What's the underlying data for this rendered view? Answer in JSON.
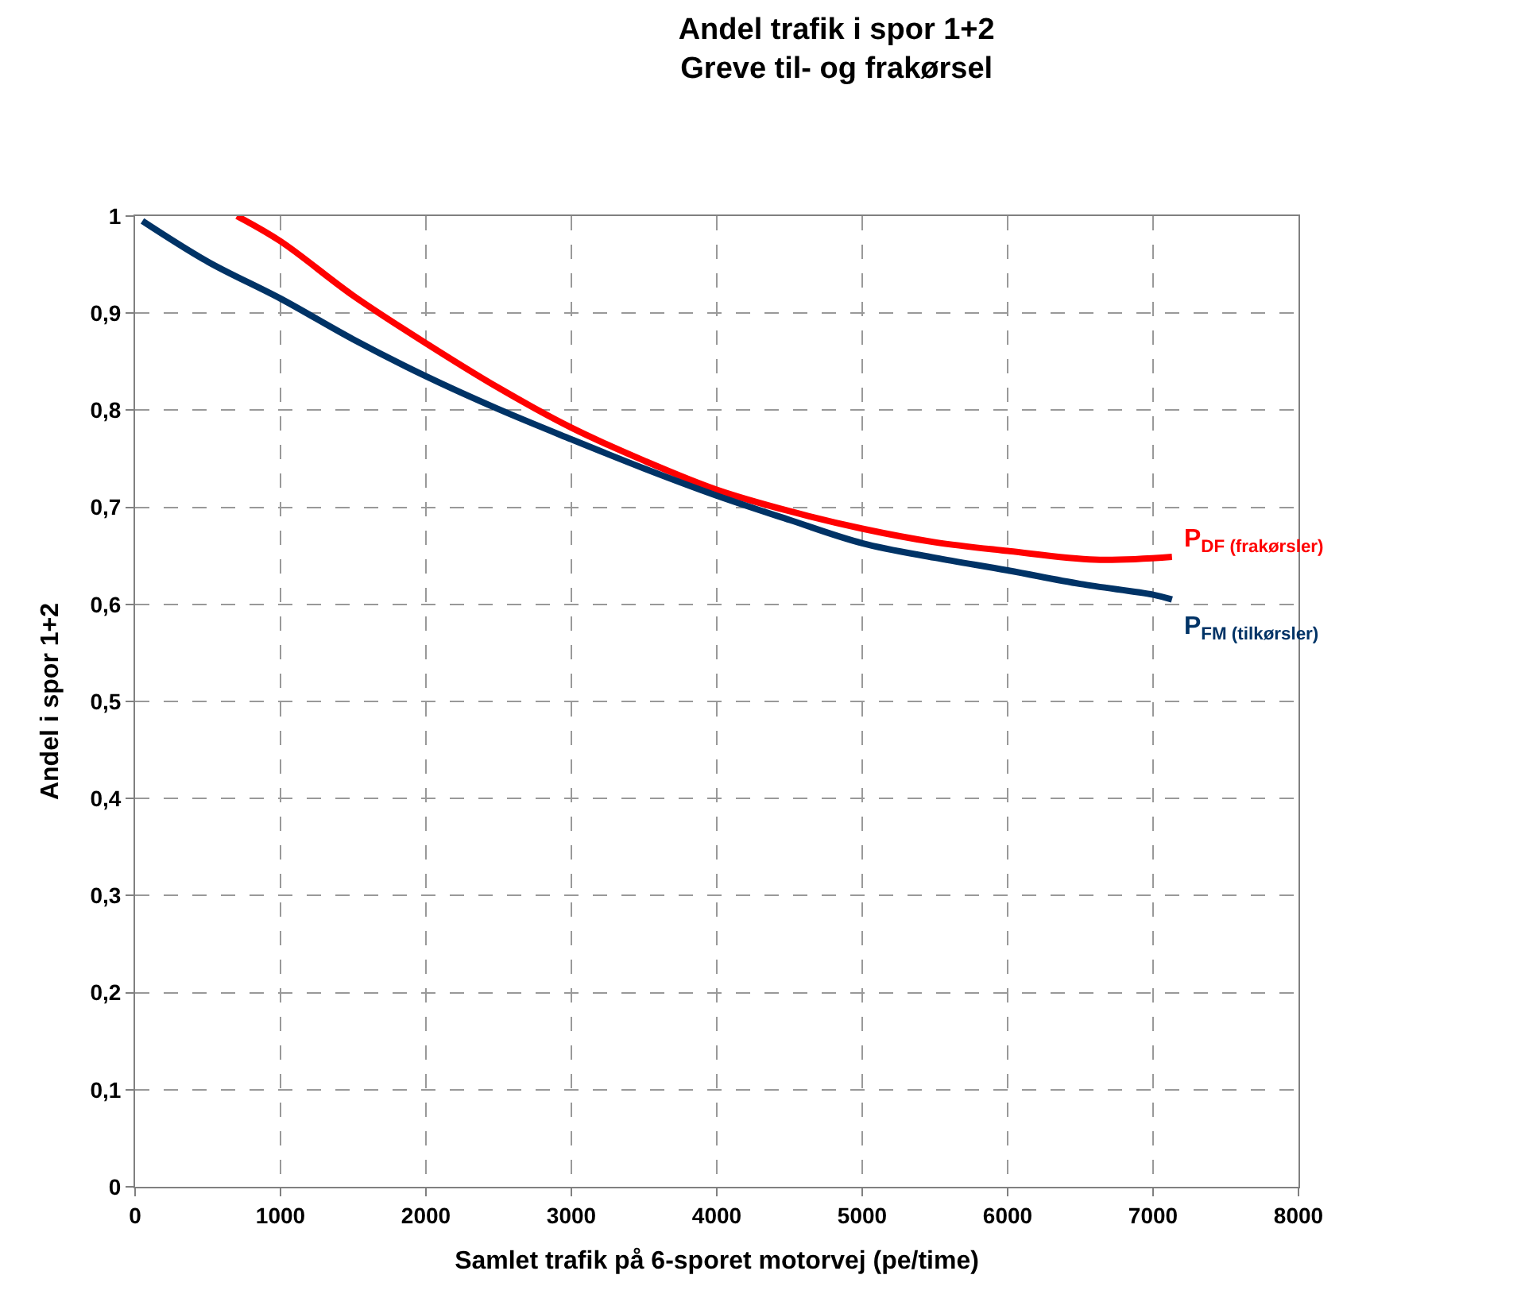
{
  "chart_data": {
    "type": "line",
    "title": "Andel trafik i spor 1+2\nGreve til- og frakørsel",
    "xlabel": "Samlet trafik på 6-sporet motorvej (pe/time)",
    "ylabel": "Andel i spor 1+2",
    "xlim": [
      0,
      8000
    ],
    "xticks": [
      0,
      1000,
      2000,
      3000,
      4000,
      5000,
      6000,
      7000,
      8000
    ],
    "ylim": [
      0,
      1
    ],
    "yticks": [
      {
        "value": 0,
        "label": "0"
      },
      {
        "value": 0.1,
        "label": "0,1"
      },
      {
        "value": 0.2,
        "label": "0,2"
      },
      {
        "value": 0.3,
        "label": "0,3"
      },
      {
        "value": 0.4,
        "label": "0,4"
      },
      {
        "value": 0.5,
        "label": "0,5"
      },
      {
        "value": 0.6,
        "label": "0,6"
      },
      {
        "value": 0.7,
        "label": "0,7"
      },
      {
        "value": 0.8,
        "label": "0,8"
      },
      {
        "value": 0.9,
        "label": "0,9"
      },
      {
        "value": 1,
        "label": "1"
      }
    ],
    "grid": true,
    "legend": false,
    "marker": "none",
    "line_style": "solid",
    "series": [
      {
        "name": "P$_{DF (frakørsler)}$",
        "color": "#ff0000",
        "x": [
          700,
          1000,
          1500,
          2000,
          2500,
          3000,
          3500,
          4000,
          4500,
          5000,
          5500,
          6000,
          6600,
          7130
        ],
        "values": [
          1.0,
          0.974,
          0.918,
          0.869,
          0.823,
          0.782,
          0.748,
          0.718,
          0.696,
          0.678,
          0.664,
          0.655,
          0.646,
          0.649
        ]
      },
      {
        "name": "P$_{FM (tilkørsler)}$",
        "color": "#003366",
        "x": [
          50,
          500,
          1000,
          1500,
          2000,
          2500,
          3000,
          3500,
          4000,
          4500,
          5000,
          5500,
          6000,
          6500,
          7000,
          7130
        ],
        "values": [
          0.995,
          0.953,
          0.915,
          0.873,
          0.835,
          0.801,
          0.77,
          0.74,
          0.712,
          0.687,
          0.663,
          0.648,
          0.635,
          0.621,
          0.61,
          0.605
        ]
      }
    ]
  }
}
